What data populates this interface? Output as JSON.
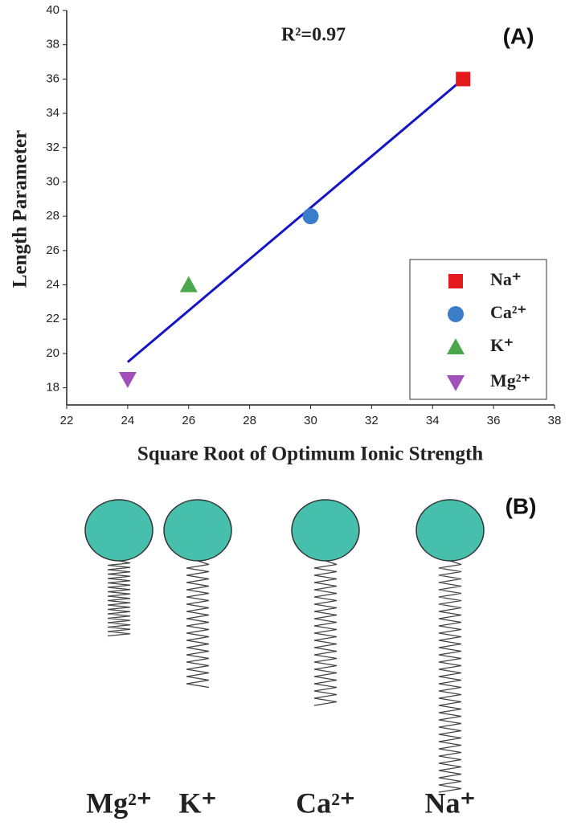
{
  "chart_data": {
    "type": "scatter",
    "annotation": "R²=0.97",
    "panel_label": "(A)",
    "x_label": "Square Root of Optimum Ionic Strength",
    "y_label": "Length Parameter",
    "xlim": [
      22,
      38
    ],
    "xticks": [
      22,
      24,
      26,
      28,
      30,
      32,
      34,
      36,
      38
    ],
    "ylim": [
      17,
      40
    ],
    "yticks": [
      18,
      20,
      22,
      24,
      26,
      28,
      30,
      32,
      34,
      36,
      38,
      40
    ],
    "grid": false,
    "legend": "lower right",
    "series": [
      {
        "name": "Na⁺",
        "color": "#e41a1c",
        "marker": "square",
        "x": [
          35
        ],
        "values": [
          36
        ]
      },
      {
        "name": "Ca²⁺",
        "color": "#3a7dc9",
        "marker": "circle",
        "x": [
          30
        ],
        "values": [
          28
        ]
      },
      {
        "name": "K⁺",
        "color": "#4aa84a",
        "marker": "triangle-up",
        "x": [
          26
        ],
        "values": [
          24
        ]
      },
      {
        "name": "Mg²⁺",
        "color": "#a050b8",
        "marker": "triangle-down",
        "x": [
          24
        ],
        "values": [
          18.5
        ]
      }
    ],
    "fit_line": {
      "color": "#1414c8",
      "x": [
        24,
        35
      ],
      "values": [
        19.5,
        36
      ]
    }
  },
  "diagram": {
    "panel_label": "(B)",
    "labels": [
      "Mg²⁺",
      "K⁺",
      "Ca²⁺",
      "Na⁺"
    ]
  }
}
